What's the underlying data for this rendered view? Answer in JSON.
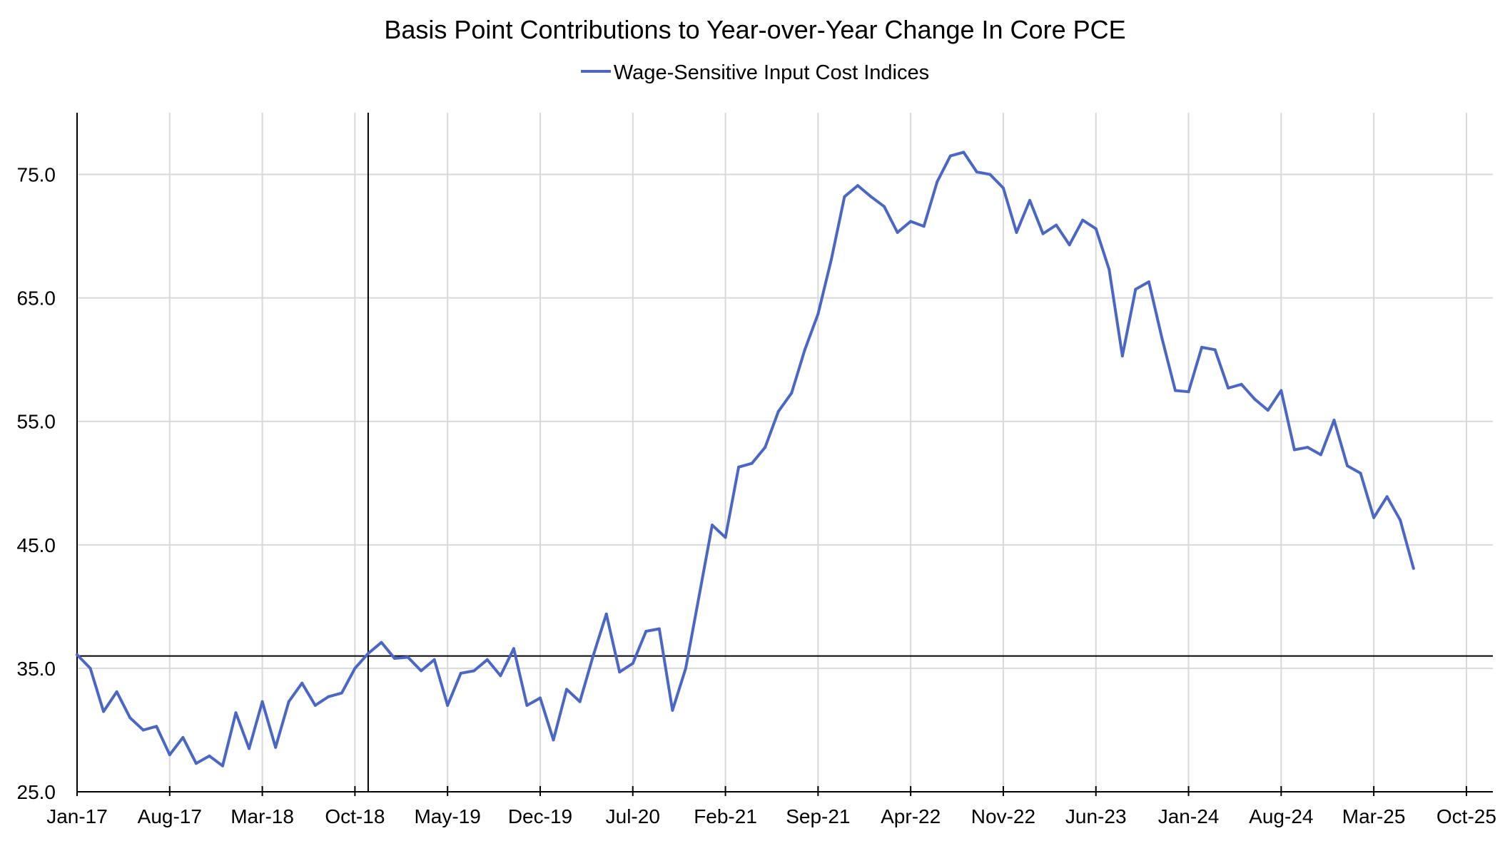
{
  "chart_data": {
    "type": "line",
    "title": "Basis Point Contributions to Year-over-Year Change In Core PCE",
    "xlabel": "",
    "ylabel": "",
    "legend_position": "top-center",
    "grid": true,
    "ylim": [
      25,
      80
    ],
    "yticks": [
      "25.0",
      "35.0",
      "45.0",
      "55.0",
      "65.0",
      "75.0"
    ],
    "xlim": [
      "Jan-17",
      "Dec-25"
    ],
    "xticks": [
      "Jan-17",
      "Aug-17",
      "Mar-18",
      "Oct-18",
      "May-19",
      "Dec-19",
      "Jul-20",
      "Feb-21",
      "Sep-21",
      "Apr-22",
      "Nov-22",
      "Jun-23",
      "Jan-24",
      "Aug-24",
      "Mar-25",
      "Oct-25"
    ],
    "reference_lines": {
      "horizontal_y": 36.0,
      "vertical_x": "Nov-18"
    },
    "x": [
      "Jan-17",
      "Feb-17",
      "Mar-17",
      "Apr-17",
      "May-17",
      "Jun-17",
      "Jul-17",
      "Aug-17",
      "Sep-17",
      "Oct-17",
      "Nov-17",
      "Dec-17",
      "Jan-18",
      "Feb-18",
      "Mar-18",
      "Apr-18",
      "May-18",
      "Jun-18",
      "Jul-18",
      "Aug-18",
      "Sep-18",
      "Oct-18",
      "Nov-18",
      "Dec-18",
      "Jan-19",
      "Feb-19",
      "Mar-19",
      "Apr-19",
      "May-19",
      "Jun-19",
      "Jul-19",
      "Aug-19",
      "Sep-19",
      "Oct-19",
      "Nov-19",
      "Dec-19",
      "Jan-20",
      "Feb-20",
      "Mar-20",
      "Apr-20",
      "May-20",
      "Jun-20",
      "Jul-20",
      "Aug-20",
      "Sep-20",
      "Oct-20",
      "Nov-20",
      "Dec-20",
      "Jan-21",
      "Feb-21",
      "Mar-21",
      "Apr-21",
      "May-21",
      "Jun-21",
      "Jul-21",
      "Aug-21",
      "Sep-21",
      "Oct-21",
      "Nov-21",
      "Dec-21",
      "Jan-22",
      "Feb-22",
      "Mar-22",
      "Apr-22",
      "May-22",
      "Jun-22",
      "Jul-22",
      "Aug-22",
      "Sep-22",
      "Oct-22",
      "Nov-22",
      "Dec-22",
      "Jan-23",
      "Feb-23",
      "Mar-23",
      "Apr-23",
      "May-23",
      "Jun-23",
      "Jul-23",
      "Aug-23",
      "Sep-23",
      "Oct-23",
      "Nov-23",
      "Dec-23",
      "Jan-24",
      "Feb-24",
      "Mar-24",
      "Apr-24",
      "May-24",
      "Jun-24",
      "Jul-24",
      "Aug-24",
      "Sep-24",
      "Oct-24",
      "Nov-24",
      "Dec-24",
      "Jan-25",
      "Feb-25",
      "Mar-25",
      "Apr-25",
      "May-25",
      "Jun-25"
    ],
    "series": [
      {
        "name": "Wage-Sensitive Input Cost Indices",
        "color": "#4a67c6",
        "values": [
          36.1,
          35.0,
          31.5,
          33.1,
          31.0,
          30.0,
          30.3,
          28.0,
          29.4,
          27.3,
          27.9,
          27.1,
          31.4,
          28.5,
          32.3,
          28.6,
          32.3,
          33.8,
          32.0,
          32.7,
          33.0,
          35.0,
          36.2,
          37.1,
          35.8,
          35.9,
          34.8,
          35.7,
          32.0,
          34.6,
          34.8,
          35.7,
          34.4,
          36.6,
          32.0,
          32.6,
          29.2,
          33.3,
          32.3,
          36.0,
          39.4,
          34.7,
          35.4,
          38.0,
          38.2,
          31.6,
          35.0,
          40.8,
          46.6,
          45.6,
          51.3,
          51.6,
          52.9,
          55.8,
          57.3,
          60.8,
          63.7,
          68.1,
          73.2,
          74.1,
          73.2,
          72.4,
          70.3,
          71.2,
          70.8,
          74.4,
          76.5,
          76.8,
          75.2,
          75.0,
          73.9,
          70.3,
          72.9,
          70.2,
          70.9,
          69.3,
          71.3,
          70.6,
          67.3,
          60.3,
          65.7,
          66.3,
          61.7,
          57.5,
          57.4,
          61.0,
          60.8,
          57.7,
          58.0,
          56.8,
          55.9,
          57.5,
          52.7,
          52.9,
          52.3,
          55.1,
          51.4,
          50.8,
          47.2,
          48.9,
          47.0,
          43.1
        ]
      }
    ]
  }
}
